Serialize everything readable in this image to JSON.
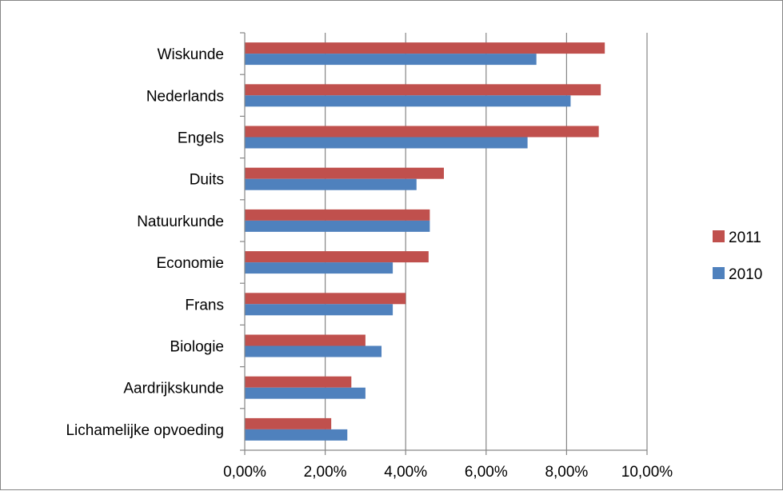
{
  "chart_data": {
    "type": "bar",
    "orientation": "horizontal",
    "categories": [
      "Wiskunde",
      "Nederlands",
      "Engels",
      "Duits",
      "Natuurkunde",
      "Economie",
      "Frans",
      "Biologie",
      "Aardrijkskunde",
      "Lichamelijke opvoeding"
    ],
    "series": [
      {
        "name": "2011",
        "color": "#C0504D",
        "values": [
          8.95,
          8.85,
          8.8,
          4.95,
          4.6,
          4.57,
          4.0,
          3.0,
          2.65,
          2.15
        ]
      },
      {
        "name": "2010",
        "color": "#4F81BD",
        "values": [
          7.25,
          8.1,
          7.03,
          4.27,
          4.6,
          3.68,
          3.68,
          3.4,
          3.0,
          2.55
        ]
      }
    ],
    "xlim": [
      0,
      10
    ],
    "xticks": [
      "0,00%",
      "2,00%",
      "4,00%",
      "6,00%",
      "8,00%",
      "10,00%"
    ],
    "grid": true,
    "legend_position": "right",
    "title": "",
    "xlabel": "",
    "ylabel": ""
  }
}
